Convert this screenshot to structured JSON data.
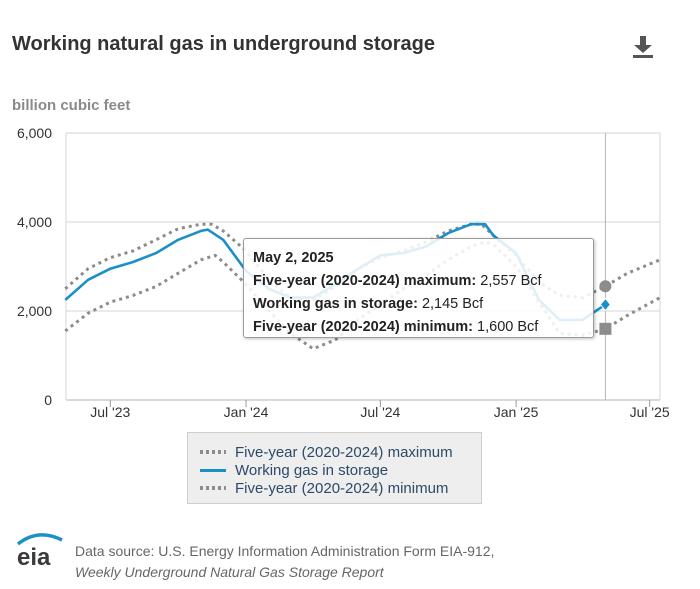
{
  "header": {
    "title": "Working natural gas in underground storage",
    "unit_label": "billion cubic feet",
    "download_icon": "download-icon"
  },
  "chart_data": {
    "type": "line",
    "ylabel": "billion cubic feet",
    "ylim": [
      0,
      6000
    ],
    "yticks": [
      0,
      2000,
      4000,
      6000
    ],
    "ytick_labels": [
      "0",
      "2,000",
      "4,000",
      "6,000"
    ],
    "xlim": [
      "2023-05-02",
      "2025-07-15"
    ],
    "xticks": [
      "2023-07-01",
      "2024-01-01",
      "2024-07-01",
      "2025-01-01",
      "2025-07-01"
    ],
    "xtick_labels": [
      "Jul '23",
      "Jan '24",
      "Jul '24",
      "Jan '25",
      "Jul '25"
    ],
    "grid": true,
    "legend_position": "bottom",
    "series": [
      {
        "name": "Five-year (2020-2024) maximum",
        "style": "dotted",
        "color": "#8c8c8c",
        "x": [
          "2023-05-01",
          "2023-06-01",
          "2023-07-01",
          "2023-08-01",
          "2023-09-01",
          "2023-10-01",
          "2023-11-01",
          "2023-11-15",
          "2023-12-01",
          "2024-01-01",
          "2024-02-01",
          "2024-03-01",
          "2024-04-01",
          "2024-05-01",
          "2024-06-01",
          "2024-07-01",
          "2024-08-01",
          "2024-09-01",
          "2024-10-01",
          "2024-11-01",
          "2024-11-15",
          "2024-12-01",
          "2025-01-01",
          "2025-02-01",
          "2025-03-01",
          "2025-04-01",
          "2025-05-02",
          "2025-06-01",
          "2025-07-15"
        ],
        "values": [
          2500,
          2950,
          3200,
          3350,
          3600,
          3850,
          3950,
          3950,
          3800,
          3350,
          2700,
          2300,
          2250,
          2550,
          2950,
          3200,
          3350,
          3550,
          3800,
          3950,
          3950,
          3700,
          3250,
          2650,
          2350,
          2300,
          2557,
          2850,
          3150
        ]
      },
      {
        "name": "Working gas in storage",
        "style": "solid",
        "color": "#1b8fc7",
        "x": [
          "2023-05-01",
          "2023-06-01",
          "2023-07-01",
          "2023-08-01",
          "2023-09-01",
          "2023-10-01",
          "2023-11-01",
          "2023-11-10",
          "2023-12-01",
          "2024-01-01",
          "2024-02-01",
          "2024-03-01",
          "2024-04-01",
          "2024-05-01",
          "2024-06-01",
          "2024-07-01",
          "2024-08-01",
          "2024-09-01",
          "2024-10-01",
          "2024-11-01",
          "2024-11-20",
          "2024-12-01",
          "2025-01-01",
          "2025-02-01",
          "2025-03-01",
          "2025-04-01",
          "2025-05-02"
        ],
        "values": [
          2250,
          2700,
          2950,
          3100,
          3300,
          3600,
          3800,
          3830,
          3600,
          2900,
          2500,
          2300,
          2300,
          2600,
          2950,
          3250,
          3300,
          3450,
          3750,
          3950,
          3950,
          3700,
          3300,
          2250,
          1800,
          1800,
          2145
        ]
      },
      {
        "name": "Five-year (2020-2024) minimum",
        "style": "dotted",
        "color": "#8c8c8c",
        "x": [
          "2023-05-01",
          "2023-06-01",
          "2023-07-01",
          "2023-08-01",
          "2023-09-01",
          "2023-10-01",
          "2023-11-01",
          "2023-11-20",
          "2023-12-01",
          "2024-01-01",
          "2024-02-01",
          "2024-03-01",
          "2024-04-01",
          "2024-05-01",
          "2024-06-01",
          "2024-07-01",
          "2024-08-01",
          "2024-09-01",
          "2024-10-01",
          "2024-11-01",
          "2024-11-20",
          "2024-12-01",
          "2025-01-01",
          "2025-02-01",
          "2025-03-01",
          "2025-04-01",
          "2025-05-02",
          "2025-06-01",
          "2025-07-15"
        ],
        "values": [
          1550,
          1950,
          2200,
          2350,
          2550,
          2850,
          3150,
          3250,
          3100,
          2600,
          2000,
          1500,
          1150,
          1350,
          1800,
          2150,
          2500,
          2800,
          3150,
          3450,
          3550,
          3500,
          3000,
          2200,
          1500,
          1450,
          1600,
          1900,
          2300
        ]
      }
    ],
    "hover": {
      "date": "2025-05-02",
      "markers": [
        {
          "series": "Five-year (2020-2024) maximum",
          "value": 2557,
          "shape": "circle",
          "color": "#8c8c8c"
        },
        {
          "series": "Working gas in storage",
          "value": 2145,
          "shape": "diamond",
          "color": "#1b8fc7"
        },
        {
          "series": "Five-year (2020-2024) minimum",
          "value": 1600,
          "shape": "square",
          "color": "#8c8c8c"
        }
      ]
    }
  },
  "tooltip": {
    "date": "May 2, 2025",
    "rows": [
      {
        "label": "Five-year (2020-2024) maximum:",
        "value": "2,557 Bcf"
      },
      {
        "label": "Working gas in storage:",
        "value": "2,145 Bcf"
      },
      {
        "label": "Five-year (2020-2024) minimum:",
        "value": "1,600 Bcf"
      }
    ]
  },
  "legend": {
    "items": [
      {
        "label": "Five-year (2020-2024) maximum"
      },
      {
        "label": "Working gas in storage"
      },
      {
        "label": "Five-year (2020-2024) minimum"
      }
    ]
  },
  "footer": {
    "logo_text": "eia",
    "source_line1": "Data source: U.S. Energy Information Administration Form EIA-912,",
    "source_line2": "Weekly Underground Natural Gas Storage Report"
  }
}
